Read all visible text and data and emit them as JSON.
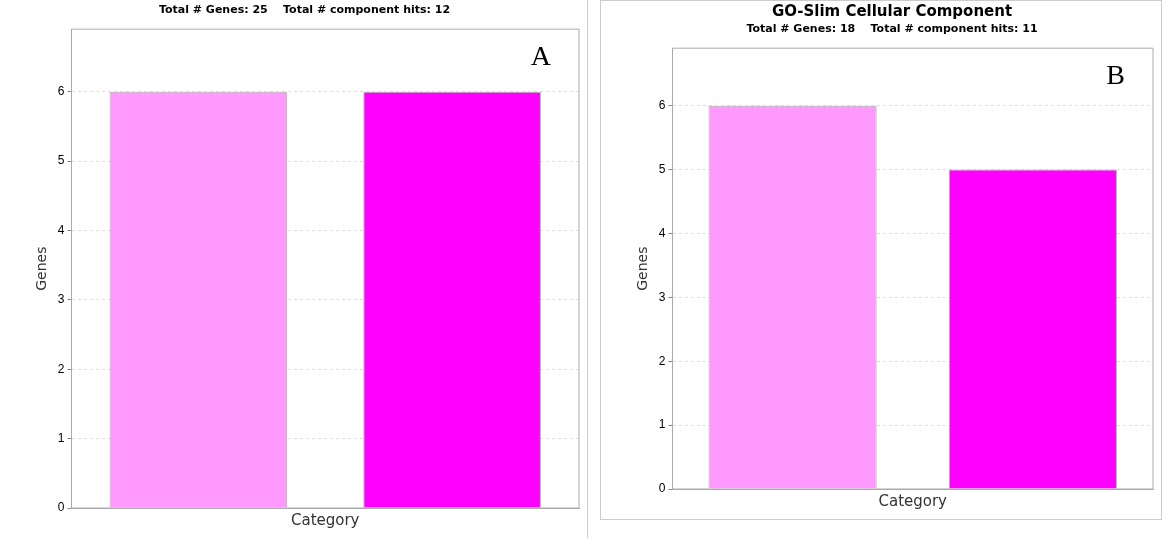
{
  "chart_data": [
    {
      "type": "bar",
      "subtitle": "Total # Genes: 25    Total # component hits: 12",
      "xlabel": "Category",
      "ylabel": "Genes",
      "categories": [
        null,
        null
      ],
      "values": [
        6,
        6
      ],
      "colors": [
        "#ff99ff",
        "#ff00ff"
      ],
      "ylim": [
        0,
        6.9
      ],
      "yticks": [
        0,
        1,
        2,
        3,
        4,
        5,
        6
      ],
      "grid": "y",
      "annotations": [
        "A"
      ]
    },
    {
      "type": "bar",
      "title": "GO-Slim Cellular Component",
      "subtitle": "Total # Genes: 18    Total # component hits: 11",
      "xlabel": "Category",
      "ylabel": "Genes",
      "categories": [
        null,
        null
      ],
      "values": [
        6,
        5
      ],
      "colors": [
        "#ff99ff",
        "#ff00ff"
      ],
      "ylim": [
        0,
        6.9
      ],
      "yticks": [
        0,
        1,
        2,
        3,
        4,
        5,
        6
      ],
      "grid": "y",
      "annotations": [
        "B"
      ]
    }
  ]
}
